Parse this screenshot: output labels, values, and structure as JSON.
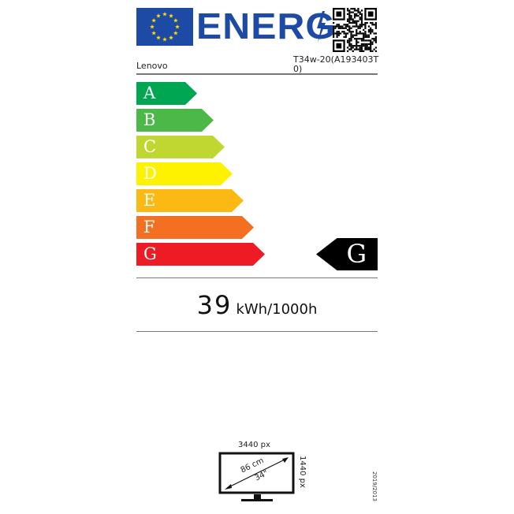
{
  "header": {
    "logo_text": "ENERG",
    "supplier": "Lenovo",
    "model": "T34w-20(A193403T0)"
  },
  "scale": [
    {
      "label": "A",
      "color": "#00a651"
    },
    {
      "label": "B",
      "color": "#4cb848"
    },
    {
      "label": "C",
      "color": "#bfd730"
    },
    {
      "label": "D",
      "color": "#fff200"
    },
    {
      "label": "E",
      "color": "#fdb913"
    },
    {
      "label": "F",
      "color": "#f36f21"
    },
    {
      "label": "G",
      "color": "#ed1c24"
    }
  ],
  "rating": {
    "class": "G"
  },
  "consumption": {
    "value": "39",
    "unit": "kWh/1000h"
  },
  "screen": {
    "horizontal_resolution": "3440 px",
    "vertical_resolution": "1440 px",
    "diagonal_cm": "86 cm",
    "diagonal_in": "34\""
  },
  "regulation": "2019/2013",
  "colors": {
    "eu_blue": "#1d4aa5",
    "eu_star": "#ffdd00"
  }
}
